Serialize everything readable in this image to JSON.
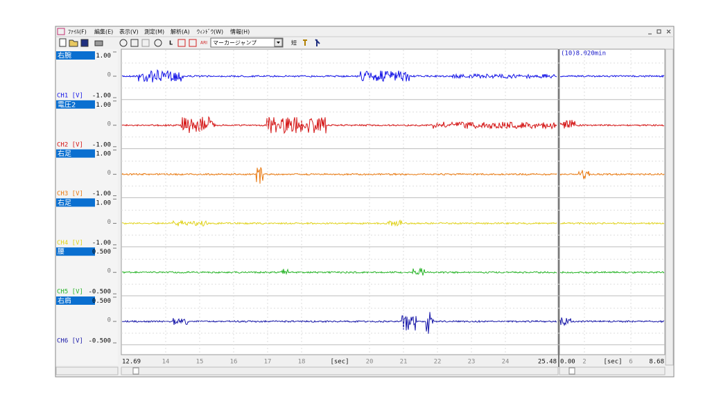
{
  "menu": [
    "ﾌｧｲﾙ(F)",
    "編集(E)",
    "表示(V)",
    "測定(M)",
    "解析(A)",
    "ｳｨﾝﾄﾞｳ(W)",
    "情報(H)"
  ],
  "toolbar": {
    "marker_label": "L",
    "text_tool": "ARI",
    "dropdown": "マーカージャンプ",
    "short_button": "短"
  },
  "channels": [
    {
      "name": "右腕",
      "top": "1.00",
      "zero": "0",
      "label": "CH1 [V]",
      "bottom": "-1.00",
      "color": "#1414e6"
    },
    {
      "name": "電圧2",
      "top": "1.00",
      "zero": "0",
      "label": "CH2 [V]",
      "bottom": "-1.00",
      "color": "#d41414"
    },
    {
      "name": "右足",
      "top": "1.00",
      "zero": "0",
      "label": "CH3 [V]",
      "bottom": "-1.00",
      "color": "#e8780f"
    },
    {
      "name": "右足",
      "top": "1.00",
      "zero": "0",
      "label": "CH4 [V]",
      "bottom": "-1.00",
      "color": "#e0d21a"
    },
    {
      "name": "腰",
      "top": "0.500",
      "zero": "0",
      "label": "CH5 [V]",
      "bottom": "-0.500",
      "color": "#28b428"
    },
    {
      "name": "右肩",
      "top": "0.500",
      "zero": "0",
      "label": "CH6 [V]",
      "bottom": "-0.500",
      "color": "#1818a8"
    }
  ],
  "main_axis": [
    "12.69",
    "14",
    "15",
    "16",
    "17",
    "18",
    "[sec]",
    "20",
    "21",
    "22",
    "23",
    "24",
    "25.48"
  ],
  "sub_panel": {
    "header": "(10)8.020min",
    "axis": [
      "0.00",
      "2",
      "[sec]",
      "6",
      "8.68"
    ]
  }
}
